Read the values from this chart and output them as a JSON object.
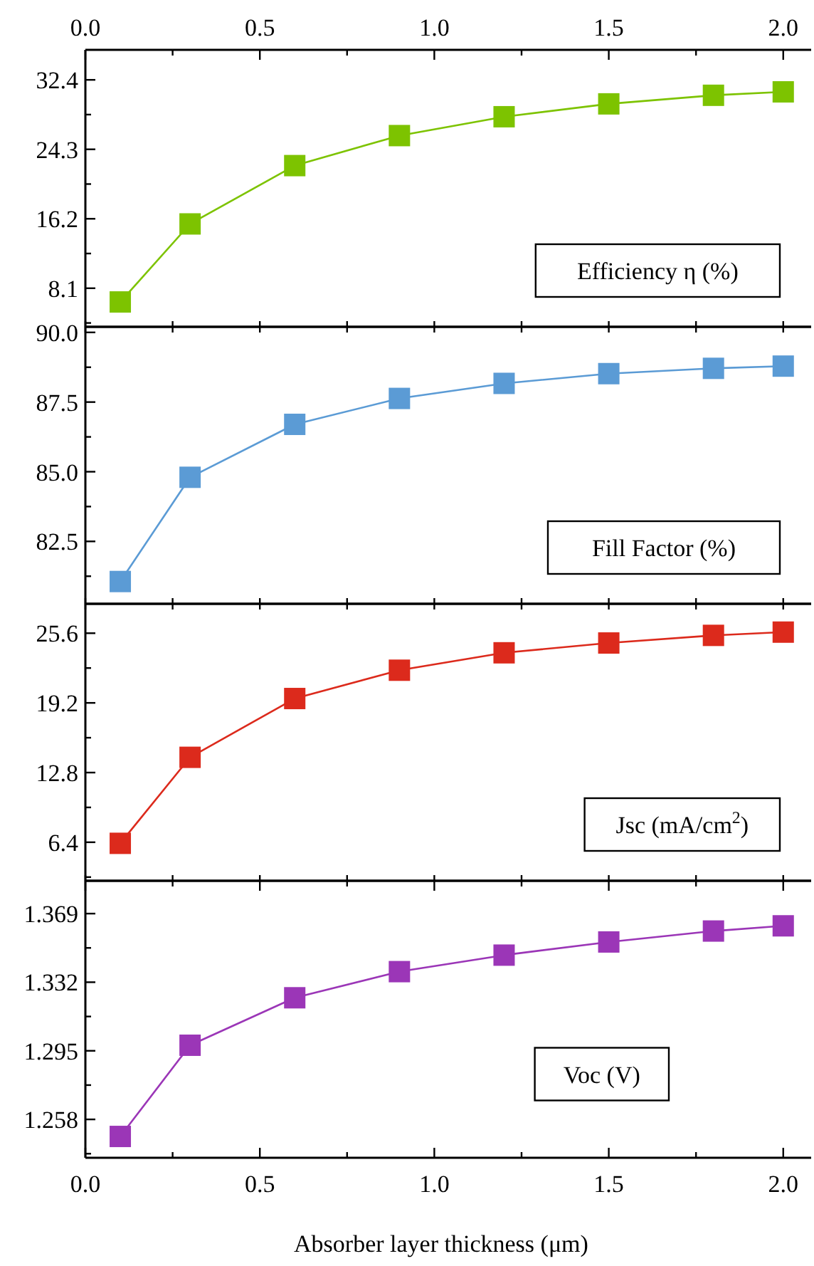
{
  "chart_data": [
    {
      "type": "line",
      "x2lim": [
        0,
        2.08
      ],
      "x2ticks": [
        {
          "value": 0,
          "label": "0.0"
        },
        {
          "value": 0.25,
          "label": null
        },
        0.5,
        {
          "value": 0.75,
          "label": null
        },
        {
          "value": 1,
          "label": "1.0"
        },
        {
          "value": 1.25,
          "label": null
        },
        1.5,
        {
          "value": 1.75,
          "label": null
        },
        {
          "value": 2,
          "label": "2.0"
        }
      ],
      "xlim": [
        0,
        2.08
      ],
      "xticks": [
        {
          "value": 0,
          "label": null
        },
        {
          "value": 0.25,
          "label": null
        },
        {
          "value": 0.5,
          "label": null
        },
        {
          "value": 0.75,
          "label": null
        },
        {
          "value": 1.0,
          "label": null
        },
        {
          "value": 1.25,
          "label": null
        },
        {
          "value": 1.5,
          "label": null
        },
        {
          "value": 1.75,
          "label": null
        },
        {
          "value": 2.0,
          "label": null
        }
      ],
      "tick_labels": "y",
      "ylim": [
        3.6,
        35.9
      ],
      "yticks": [
        {
          "value": 4.05,
          "label": null
        },
        8.1,
        {
          "value": 12.15,
          "label": null
        },
        16.2,
        {
          "value": 20.25,
          "label": null
        },
        24.3,
        {
          "value": 28.35,
          "label": null
        },
        32.4
      ],
      "marker": "square",
      "annotations": [
        "Efficiency η (%)"
      ],
      "series": [
        {
          "color": "#7dc300",
          "x": [
            0.1,
            0.3,
            0.6,
            0.9,
            1.2,
            1.5,
            1.8,
            2.0
          ],
          "values": [
            6.5,
            15.6,
            22.4,
            25.9,
            28.1,
            29.6,
            30.6,
            31.0
          ]
        }
      ]
    },
    {
      "type": "line",
      "xlim": [
        0,
        2.08
      ],
      "xticks": [
        {
          "value": 0,
          "label": null
        },
        {
          "value": 0.25,
          "label": null
        },
        {
          "value": 0.5,
          "label": null
        },
        {
          "value": 0.75,
          "label": null
        },
        {
          "value": 1.0,
          "label": null
        },
        {
          "value": 1.25,
          "label": null
        },
        {
          "value": 1.5,
          "label": null
        },
        {
          "value": 1.75,
          "label": null
        },
        {
          "value": 2.0,
          "label": null
        }
      ],
      "tick_labels": "y",
      "ylim": [
        80.26,
        90.2
      ],
      "yticks": [
        {
          "value": 81.25,
          "label": null
        },
        82.5,
        {
          "value": 83.75,
          "label": null
        },
        {
          "value": 85,
          "label": "85.0"
        },
        {
          "value": 86.25,
          "label": null
        },
        87.5,
        {
          "value": 88.75,
          "label": null
        },
        {
          "value": 90,
          "label": "90.0"
        }
      ],
      "marker": "square",
      "annotations": [
        "Fill Factor (%)"
      ],
      "series": [
        {
          "color": "#5b9bd5",
          "x": [
            0.1,
            0.3,
            0.6,
            0.9,
            1.2,
            1.5,
            1.8,
            2.0
          ],
          "values": [
            81.06,
            84.8,
            86.7,
            87.63,
            88.17,
            88.52,
            88.71,
            88.79
          ]
        }
      ]
    },
    {
      "type": "line",
      "xlim": [
        0,
        2.08
      ],
      "xticks": [
        {
          "value": 0,
          "label": null
        },
        {
          "value": 0.25,
          "label": null
        },
        {
          "value": 0.5,
          "label": null
        },
        {
          "value": 0.75,
          "label": null
        },
        {
          "value": 1.0,
          "label": null
        },
        {
          "value": 1.25,
          "label": null
        },
        {
          "value": 1.5,
          "label": null
        },
        {
          "value": 1.75,
          "label": null
        },
        {
          "value": 2.0,
          "label": null
        }
      ],
      "tick_labels": "y",
      "ylim": [
        2.86,
        28.3
      ],
      "yticks": [
        {
          "value": 3.2,
          "label": null
        },
        6.4,
        {
          "value": 9.6,
          "label": null
        },
        12.8,
        {
          "value": 16.0,
          "label": null
        },
        19.2,
        {
          "value": 22.4,
          "label": null
        },
        25.6
      ],
      "marker": "square",
      "annotations": [
        "Jsc (mA/cm$^{2}$)"
      ],
      "series": [
        {
          "color": "#dc2a1c",
          "x": [
            0.1,
            0.3,
            0.6,
            0.9,
            1.2,
            1.5,
            1.8,
            2.0
          ],
          "values": [
            6.3,
            14.2,
            19.6,
            22.2,
            23.8,
            24.7,
            25.4,
            25.7
          ]
        }
      ]
    },
    {
      "type": "line",
      "xlim": [
        0,
        2.08
      ],
      "xticks": [
        {
          "value": 0,
          "label": "0.0"
        },
        {
          "value": 0.25,
          "label": null
        },
        0.5,
        {
          "value": 0.75,
          "label": null
        },
        {
          "value": 1,
          "label": "1.0"
        },
        {
          "value": 1.25,
          "label": null
        },
        1.5,
        {
          "value": 1.75,
          "label": null
        },
        {
          "value": 2,
          "label": "2.0"
        }
      ],
      "xlabel": "Absorber layer thickness (μm)",
      "ylim": [
        1.2373,
        1.3867
      ],
      "yticks": [
        {
          "value": 1.2395,
          "label": null
        },
        1.258,
        {
          "value": 1.2765,
          "label": null
        },
        1.295,
        {
          "value": 1.3135,
          "label": null
        },
        1.332,
        {
          "value": 1.3505,
          "label": null
        },
        1.369
      ],
      "marker": "square",
      "annotations": [
        "Voc (V)"
      ],
      "series": [
        {
          "color": "#9b36b7",
          "x": [
            0.1,
            0.3,
            0.6,
            0.9,
            1.2,
            1.5,
            1.8,
            2.0
          ],
          "values": [
            1.2488,
            1.298,
            1.3236,
            1.3377,
            1.3466,
            1.3537,
            1.3596,
            1.3624
          ]
        }
      ]
    }
  ]
}
